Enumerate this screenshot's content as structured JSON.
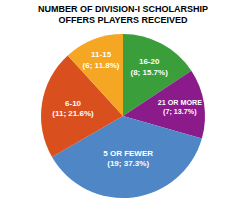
{
  "chart_data": {
    "type": "pie",
    "title": "NUMBER OF DIVISION-I SCHOLARSHIP\nOFFERS PLAYERS RECEIVED",
    "categories": [
      "16-20\n(8; 15.7%)",
      "21 OR MORE\n(7; 13.7%)",
      "5 OR FEWER\n(19; 37.3%)",
      "6-10\n(11; 21.6%)",
      "11-15\n(6; 11.8%)"
    ],
    "values": [
      8,
      7,
      19,
      11,
      6
    ],
    "colors": [
      "#3a9e3a",
      "#8b1a8b",
      "#4f86c6",
      "#d94f1e",
      "#f5a623"
    ]
  }
}
